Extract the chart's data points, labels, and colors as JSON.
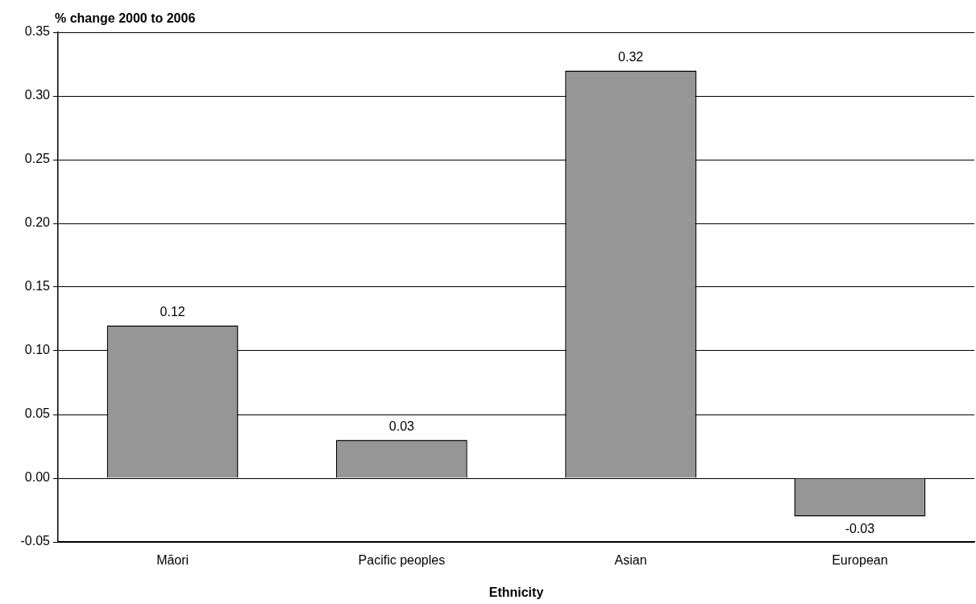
{
  "chart_data": {
    "type": "bar",
    "ylabel": "% change 2000 to 2006",
    "xlabel": "Ethnicity",
    "categories": [
      "Māori",
      "Pacific peoples",
      "Asian",
      "European"
    ],
    "values": [
      0.12,
      0.03,
      0.32,
      -0.03
    ],
    "color": "#969696",
    "ylim": [
      -0.05,
      0.35
    ],
    "yticks": [
      -0.05,
      {
        "value": 0,
        "label": "0.00"
      },
      0.05,
      {
        "value": 0.1,
        "label": "0.10"
      },
      0.15,
      {
        "value": 0.2,
        "label": "0.20"
      },
      0.25,
      {
        "value": 0.3,
        "label": "0.30"
      },
      0.35
    ],
    "grid": "y",
    "data_labels": true
  }
}
